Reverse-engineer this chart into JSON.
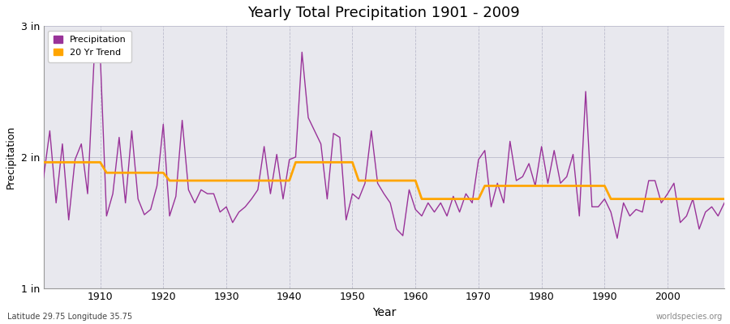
{
  "title": "Yearly Total Precipitation 1901 - 2009",
  "xlabel": "Year",
  "ylabel": "Precipitation",
  "y_label_bottom": "Latitude 29.75 Longitude 35.75",
  "y_label_right": "worldspecies.org",
  "precip_color": "#993399",
  "trend_color": "#FFA500",
  "fig_background": "#FFFFFF",
  "plot_background": "#E8E8EE",
  "legend_labels": [
    "Precipitation",
    "20 Yr Trend"
  ],
  "years": [
    1901,
    1902,
    1903,
    1904,
    1905,
    1906,
    1907,
    1908,
    1909,
    1910,
    1911,
    1912,
    1913,
    1914,
    1915,
    1916,
    1917,
    1918,
    1919,
    1920,
    1921,
    1922,
    1923,
    1924,
    1925,
    1926,
    1927,
    1928,
    1929,
    1930,
    1931,
    1932,
    1933,
    1934,
    1935,
    1936,
    1937,
    1938,
    1939,
    1940,
    1941,
    1942,
    1943,
    1944,
    1945,
    1946,
    1947,
    1948,
    1949,
    1950,
    1951,
    1952,
    1953,
    1954,
    1955,
    1956,
    1957,
    1958,
    1959,
    1960,
    1961,
    1962,
    1963,
    1964,
    1965,
    1966,
    1967,
    1968,
    1969,
    1970,
    1971,
    1972,
    1973,
    1974,
    1975,
    1976,
    1977,
    1978,
    1979,
    1980,
    1981,
    1982,
    1983,
    1984,
    1985,
    1986,
    1987,
    1988,
    1989,
    1990,
    1991,
    1992,
    1993,
    1994,
    1995,
    1996,
    1997,
    1998,
    1999,
    2000,
    2001,
    2002,
    2003,
    2004,
    2005,
    2006,
    2007,
    2008,
    2009
  ],
  "precip_values": [
    1.84,
    2.2,
    1.65,
    2.1,
    1.52,
    1.98,
    2.1,
    1.72,
    2.72,
    2.78,
    1.55,
    1.72,
    2.15,
    1.65,
    2.2,
    1.68,
    1.56,
    1.6,
    1.78,
    2.25,
    1.55,
    1.7,
    2.28,
    1.75,
    1.65,
    1.75,
    1.72,
    1.72,
    1.58,
    1.62,
    1.5,
    1.58,
    1.62,
    1.68,
    1.75,
    2.08,
    1.72,
    2.02,
    1.68,
    1.98,
    2.0,
    2.8,
    2.3,
    2.2,
    2.1,
    1.68,
    2.18,
    2.15,
    1.52,
    1.72,
    1.68,
    1.8,
    2.2,
    1.8,
    1.72,
    1.65,
    1.45,
    1.4,
    1.75,
    1.6,
    1.55,
    1.65,
    1.58,
    1.65,
    1.55,
    1.7,
    1.58,
    1.72,
    1.65,
    1.98,
    2.05,
    1.62,
    1.8,
    1.65,
    2.12,
    1.82,
    1.85,
    1.95,
    1.78,
    2.08,
    1.8,
    2.05,
    1.8,
    1.85,
    2.02,
    1.55,
    2.5,
    1.62,
    1.62,
    1.68,
    1.58,
    1.38,
    1.65,
    1.55,
    1.6,
    1.58,
    1.82,
    1.82,
    1.65,
    1.72,
    1.8,
    1.5,
    1.55,
    1.68,
    1.45,
    1.58,
    1.62,
    1.55,
    1.65
  ],
  "trend_values": [
    1.96,
    1.96,
    1.96,
    1.96,
    1.96,
    1.96,
    1.96,
    1.96,
    1.96,
    1.96,
    1.88,
    1.88,
    1.88,
    1.88,
    1.88,
    1.88,
    1.88,
    1.88,
    1.88,
    1.88,
    1.82,
    1.82,
    1.82,
    1.82,
    1.82,
    1.82,
    1.82,
    1.82,
    1.82,
    1.82,
    1.82,
    1.82,
    1.82,
    1.82,
    1.82,
    1.82,
    1.82,
    1.82,
    1.82,
    1.82,
    1.96,
    1.96,
    1.96,
    1.96,
    1.96,
    1.96,
    1.96,
    1.96,
    1.96,
    1.96,
    1.82,
    1.82,
    1.82,
    1.82,
    1.82,
    1.82,
    1.82,
    1.82,
    1.82,
    1.82,
    1.68,
    1.68,
    1.68,
    1.68,
    1.68,
    1.68,
    1.68,
    1.68,
    1.68,
    1.68,
    1.78,
    1.78,
    1.78,
    1.78,
    1.78,
    1.78,
    1.78,
    1.78,
    1.78,
    1.78,
    1.78,
    1.78,
    1.78,
    1.78,
    1.78,
    1.78,
    1.78,
    1.78,
    1.78,
    1.78,
    1.68,
    1.68,
    1.68,
    1.68,
    1.68,
    1.68,
    1.68,
    1.68,
    1.68,
    1.68,
    1.68,
    1.68,
    1.68,
    1.68,
    1.68,
    1.68,
    1.68,
    1.68,
    1.68
  ],
  "yticks": [
    1.0,
    2.0,
    3.0
  ],
  "ytick_labels": [
    "1 in",
    "2 in",
    "3 in"
  ],
  "xticks": [
    1910,
    1920,
    1930,
    1940,
    1950,
    1960,
    1970,
    1980,
    1990,
    2000
  ],
  "xlim": [
    1901,
    2009
  ],
  "ylim": [
    1.0,
    3.0
  ]
}
